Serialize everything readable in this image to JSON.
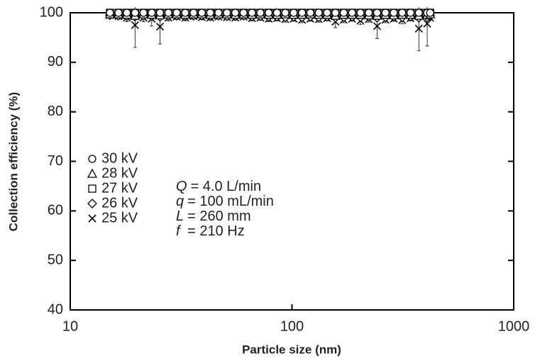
{
  "chart_data": {
    "type": "scatter",
    "x_label": "Particle size (nm)",
    "y_label": "Collection efficiency (%)",
    "xlog": true,
    "xlim": [
      10,
      1000
    ],
    "xticks": [
      10,
      100,
      1000
    ],
    "ylim": [
      40,
      100
    ],
    "yticks": [
      40,
      50,
      60,
      70,
      80,
      90,
      100
    ],
    "x": [
      15.1,
      16.5,
      18.0,
      19.6,
      21.4,
      23.3,
      25.4,
      27.7,
      30.2,
      33.0,
      36.0,
      39.2,
      42.8,
      46.6,
      50.9,
      55.5,
      60.5,
      66.0,
      72.0,
      78.5,
      85.6,
      93.3,
      101.8,
      111.0,
      121.0,
      132.0,
      144.0,
      157.0,
      171.2,
      186.7,
      203.6,
      222.0,
      242.1,
      264.0,
      287.9,
      314.0,
      342.4,
      373.4,
      407.2,
      420.0
    ],
    "series": [
      {
        "name": "30 kV",
        "marker": "circle",
        "color": "#000000",
        "values": [
          100,
          100,
          100,
          100,
          100,
          100,
          100,
          100,
          100,
          100,
          100,
          100,
          100,
          100,
          100,
          100,
          100,
          100,
          100,
          100,
          100,
          100,
          100,
          100,
          100,
          100,
          100,
          100,
          100,
          100,
          100,
          100,
          100,
          100,
          100,
          100,
          100,
          100,
          100,
          100
        ]
      },
      {
        "name": "28 kV",
        "marker": "triangle",
        "color": "#000000",
        "values": [
          99.7,
          99.7,
          99.6,
          99.4,
          99.7,
          99.6,
          99.5,
          99.7,
          99.7,
          99.6,
          99.7,
          99.7,
          99.6,
          99.7,
          99.7,
          99.6,
          99.7,
          99.6,
          99.7,
          99.6,
          99.6,
          99.7,
          99.6,
          99.6,
          99.7,
          99.6,
          99.6,
          99.4,
          99.6,
          99.6,
          99.6,
          99.5,
          99.4,
          99.6,
          99.5,
          99.6,
          99.6,
          99.4,
          99.5,
          99.7
        ]
      },
      {
        "name": "27 kV",
        "marker": "square",
        "color": "#000000",
        "values": [
          100,
          100,
          100,
          100,
          100,
          100,
          100,
          100,
          100,
          100,
          100,
          100,
          100,
          100,
          100,
          100,
          100,
          100,
          100,
          100,
          100,
          100,
          100,
          100,
          100,
          100,
          100,
          100,
          100,
          100,
          100,
          100,
          100,
          100,
          100,
          100,
          100,
          100,
          100,
          100
        ]
      },
      {
        "name": "26 kV",
        "marker": "diamond",
        "color": "#000000",
        "values": [
          99.5,
          99.4,
          99.3,
          99.2,
          99.4,
          99.3,
          99.2,
          99.4,
          99.4,
          99.3,
          99.4,
          99.4,
          99.3,
          99.4,
          99.3,
          99.3,
          99.4,
          99.2,
          99.3,
          99.2,
          99.2,
          99.1,
          99.2,
          99.1,
          99.2,
          99.1,
          99.2,
          99.0,
          99.1,
          99.2,
          99.1,
          99.2,
          99.0,
          99.1,
          99.2,
          99.1,
          99.2,
          99.0,
          99.1,
          99.4
        ]
      },
      {
        "name": "25 kV",
        "marker": "cross",
        "color": "#000000",
        "values": [
          99.5,
          99.3,
          99.0,
          97.5,
          99.0,
          98.8,
          97.2,
          99.0,
          99.2,
          99.0,
          99.3,
          99.1,
          99.0,
          99.2,
          99.1,
          99.0,
          99.2,
          98.9,
          99.0,
          98.8,
          98.9,
          98.7,
          98.8,
          98.6,
          98.8,
          98.7,
          98.9,
          98.2,
          98.6,
          98.8,
          98.4,
          98.7,
          97.3,
          98.6,
          98.8,
          98.5,
          98.9,
          96.8,
          97.8,
          99.0
        ],
        "errors": [
          0.4,
          0.5,
          0.8,
          4.5,
          0.8,
          1.5,
          3.5,
          0.6,
          0.5,
          0.6,
          0.4,
          0.5,
          0.5,
          0.4,
          0.5,
          0.5,
          0.4,
          0.5,
          0.5,
          0.6,
          0.5,
          0.6,
          0.5,
          0.6,
          0.5,
          0.6,
          0.5,
          1.2,
          0.6,
          0.5,
          0.8,
          0.6,
          2.5,
          0.6,
          0.5,
          0.7,
          0.5,
          4.5,
          4.5,
          0.5
        ]
      }
    ],
    "annotations": [
      {
        "symbol": "Q",
        "text": "= 4.0 L/min"
      },
      {
        "symbol": "q",
        "text": "= 100 mL/min"
      },
      {
        "symbol": "L",
        "text": "= 260 mm"
      },
      {
        "symbol": "f",
        "text": " = 210 Hz"
      }
    ]
  }
}
